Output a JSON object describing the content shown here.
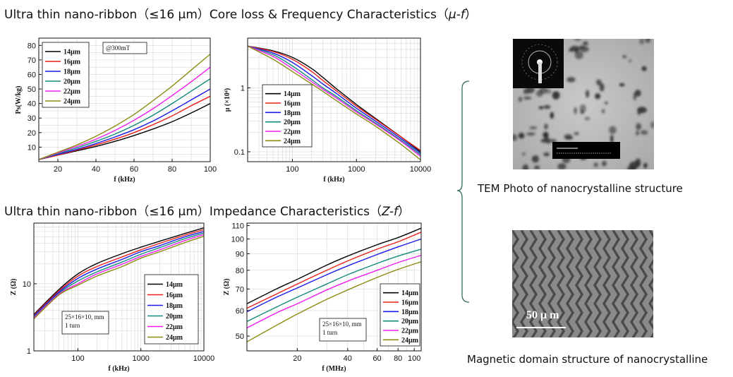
{
  "headers": {
    "top_prefix": "Ultra thin nano-ribbon（≤16 μm）Core loss & Frequency Characteristics（",
    "top_var": "μ-f",
    "top_suffix": "）",
    "bottom_prefix": "Ultra thin nano-ribbon（≤16 μm）Impedance Characteristics（",
    "bottom_var": "Z-f",
    "bottom_suffix": "）"
  },
  "captions": {
    "tem": "TEM Photo of nanocrystalline structure",
    "domain": "Magnetic domain structure of nanocrystalline",
    "scale_bar": "50 μ m"
  },
  "series_colors": [
    "#000000",
    "#e8211a",
    "#1a1ae8",
    "#138a7a",
    "#f01ef0",
    "#8c8c12"
  ],
  "chart_data": [
    {
      "type": "line",
      "xlabel": "f (kHz)",
      "ylabel": "Ps(W/kg)",
      "annotation": "@300mT",
      "xlim": [
        10,
        100
      ],
      "ylim": [
        0,
        85
      ],
      "xticks": [
        20,
        40,
        60,
        80,
        100
      ],
      "yticks": [
        10,
        20,
        30,
        40,
        50,
        60,
        70,
        80
      ],
      "grid": true,
      "legend": "top-left",
      "x": [
        10,
        20,
        30,
        40,
        50,
        60,
        70,
        80,
        90,
        100
      ],
      "series": [
        {
          "name": "14μm",
          "values": [
            1.5,
            4.5,
            7.5,
            10.5,
            14.0,
            18.0,
            22.5,
            27.5,
            33.5,
            40.0
          ]
        },
        {
          "name": "16μm",
          "values": [
            1.5,
            4.5,
            8.0,
            11.5,
            15.5,
            20.0,
            25.5,
            31.5,
            38.5,
            45.0
          ]
        },
        {
          "name": "18μm",
          "values": [
            1.5,
            5.0,
            8.5,
            12.5,
            17.0,
            22.0,
            28.0,
            35.0,
            42.5,
            50.0
          ]
        },
        {
          "name": "20μm",
          "values": [
            1.5,
            5.5,
            9.5,
            14.0,
            19.0,
            25.0,
            32.0,
            40.0,
            48.5,
            57.0
          ]
        },
        {
          "name": "22μm",
          "values": [
            1.5,
            6.0,
            10.5,
            15.5,
            21.5,
            28.5,
            36.5,
            45.5,
            55.0,
            65.0
          ]
        },
        {
          "name": "24μm",
          "values": [
            1.5,
            6.5,
            11.5,
            17.5,
            24.5,
            32.5,
            42.0,
            52.0,
            63.0,
            74.0
          ]
        }
      ]
    },
    {
      "type": "line",
      "xlabel": "f (kHz)",
      "ylabel": "μ (×10⁴)",
      "xscale": "log",
      "yscale": "log",
      "xlim": [
        20,
        10000
      ],
      "ylim": [
        0.07,
        6
      ],
      "xticks": [
        100,
        1000,
        10000
      ],
      "yticks": [
        0.1,
        1
      ],
      "grid": true,
      "legend": "left",
      "x": [
        20,
        50,
        100,
        200,
        300,
        500,
        1000,
        2000,
        5000,
        10000
      ],
      "series": [
        {
          "name": "14μm",
          "values": [
            4.5,
            3.8,
            3.0,
            2.0,
            1.45,
            0.95,
            0.55,
            0.33,
            0.17,
            0.1
          ]
        },
        {
          "name": "16μm",
          "values": [
            4.5,
            3.7,
            2.8,
            1.8,
            1.3,
            0.88,
            0.52,
            0.32,
            0.17,
            0.105
          ]
        },
        {
          "name": "18μm",
          "values": [
            4.5,
            3.5,
            2.5,
            1.55,
            1.15,
            0.8,
            0.48,
            0.3,
            0.16,
            0.095
          ]
        },
        {
          "name": "20μm",
          "values": [
            4.5,
            3.3,
            2.2,
            1.35,
            1.0,
            0.72,
            0.44,
            0.28,
            0.15,
            0.09
          ]
        },
        {
          "name": "22μm",
          "values": [
            4.5,
            3.1,
            2.0,
            1.25,
            0.95,
            0.68,
            0.42,
            0.27,
            0.145,
            0.085
          ]
        },
        {
          "name": "24μm",
          "values": [
            4.5,
            2.8,
            1.8,
            1.15,
            0.88,
            0.62,
            0.39,
            0.25,
            0.13,
            0.075
          ]
        }
      ]
    },
    {
      "type": "line",
      "xlabel": "f (kHz)",
      "ylabel": "Z (Ω)",
      "xscale": "log",
      "yscale": "log",
      "xlim": [
        20,
        10000
      ],
      "ylim": [
        1,
        80
      ],
      "xticks": [
        100,
        1000,
        10000
      ],
      "yticks": [
        1,
        10
      ],
      "grid": true,
      "legend": "bottom-right",
      "annotation": [
        "25×16×10, mm",
        "1 turn"
      ],
      "x": [
        20,
        50,
        100,
        200,
        500,
        1000,
        2000,
        5000,
        10000
      ],
      "series": [
        {
          "name": "14μm",
          "values": [
            3.5,
            8.2,
            14,
            20,
            28,
            35,
            43,
            56,
            68
          ]
        },
        {
          "name": "16μm",
          "values": [
            3.4,
            7.8,
            13,
            18,
            25,
            32,
            40,
            53,
            64
          ]
        },
        {
          "name": "18μm",
          "values": [
            3.3,
            7.5,
            12,
            16.5,
            23,
            30,
            37,
            50,
            60
          ]
        },
        {
          "name": "20μm",
          "values": [
            3.2,
            7.2,
            11,
            15,
            21,
            27.5,
            34.5,
            47,
            57
          ]
        },
        {
          "name": "22μm",
          "values": [
            3.1,
            7.0,
            10,
            14,
            19.5,
            25.5,
            32,
            44,
            54
          ]
        },
        {
          "name": "24μm",
          "values": [
            3.0,
            6.8,
            9.5,
            13,
            18,
            24,
            30,
            41,
            51
          ]
        }
      ]
    },
    {
      "type": "line",
      "xlabel": "f (MHz)",
      "ylabel": "Z (Ω)",
      "xscale": "log",
      "yscale": "log",
      "xlim": [
        10,
        110
      ],
      "ylim": [
        45,
        112
      ],
      "xticks": [
        20,
        40,
        60,
        80,
        100
      ],
      "yticks": [
        50,
        60,
        70,
        80,
        90,
        100,
        110
      ],
      "grid": true,
      "legend": "bottom-right",
      "annotation": [
        "25×16×10, mm",
        "1 turn"
      ],
      "x": [
        10,
        15,
        20,
        30,
        40,
        60,
        80,
        110
      ],
      "series": [
        {
          "name": "14μm",
          "values": [
            63,
            70,
            75,
            83,
            88.5,
            96,
            101,
            108
          ]
        },
        {
          "name": "16μm",
          "values": [
            61,
            67.5,
            72.5,
            80,
            85.5,
            93,
            98,
            105
          ]
        },
        {
          "name": "18μm",
          "values": [
            59.5,
            66,
            70.5,
            77.5,
            82.5,
            89.5,
            94.5,
            100
          ]
        },
        {
          "name": "20μm",
          "values": [
            55.5,
            61.5,
            66,
            72.5,
            77.5,
            84,
            88.5,
            93
          ]
        },
        {
          "name": "22μm",
          "values": [
            53,
            59,
            63,
            69.5,
            74,
            80,
            84.5,
            89
          ]
        },
        {
          "name": "24μm",
          "values": [
            48,
            54,
            58.5,
            65,
            69.5,
            76,
            80.5,
            85
          ]
        }
      ]
    }
  ]
}
